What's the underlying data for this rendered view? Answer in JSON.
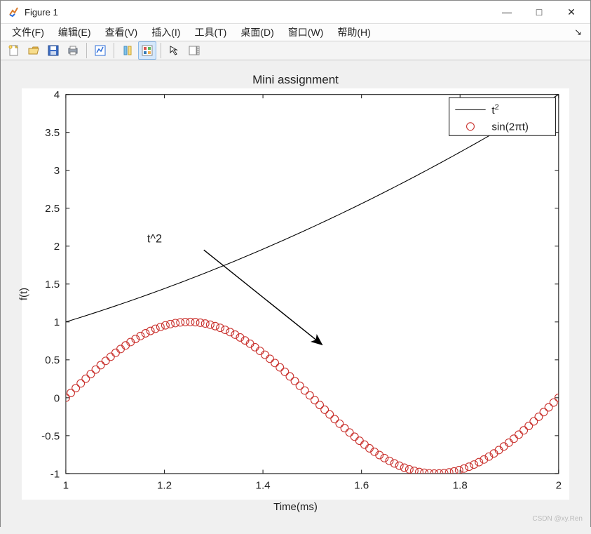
{
  "window": {
    "title": "Figure 1",
    "app_icon_color_top": "#d97a2b",
    "app_icon_color_bottom": "#2b6cd9"
  },
  "win_controls": {
    "min": "—",
    "max": "□",
    "close": "✕"
  },
  "menu": {
    "items": [
      "文件(F)",
      "编辑(E)",
      "查看(V)",
      "插入(I)",
      "工具(T)",
      "桌面(D)",
      "窗口(W)",
      "帮助(H)"
    ],
    "overflow": "↘"
  },
  "toolbar": {
    "icons": [
      {
        "name": "new-figure-icon"
      },
      {
        "name": "open-icon"
      },
      {
        "name": "save-icon"
      },
      {
        "name": "print-icon"
      },
      {
        "sep": true
      },
      {
        "name": "edit-plot-icon"
      },
      {
        "sep": true
      },
      {
        "name": "link-icon"
      },
      {
        "name": "insert-legend-icon",
        "pressed": true
      },
      {
        "sep": true
      },
      {
        "name": "arrow-icon"
      },
      {
        "name": "colorbar-icon"
      }
    ]
  },
  "chart": {
    "type": "line+scatter",
    "title": "Mini assignment",
    "xlabel": "Time(ms)",
    "ylabel": "f(t)",
    "xlim": [
      1,
      2
    ],
    "ylim": [
      -1,
      4
    ],
    "xtick_step": 0.2,
    "ytick_step": 0.5,
    "xticks": [
      1,
      1.2,
      1.4,
      1.6,
      1.8,
      2
    ],
    "yticks": [
      -1,
      -0.5,
      0,
      0.5,
      1,
      1.5,
      2,
      2.5,
      3,
      3.5,
      4
    ],
    "background_color": "#ffffff",
    "axis_color": "#222222",
    "tick_length": 5,
    "fontsize_ticks": 14,
    "fontsize_labels": 15,
    "fontsize_title": 17,
    "series": [
      {
        "name": "t_squared",
        "legend_label_html": "t²",
        "style": "line",
        "color": "#000000",
        "line_width": 1,
        "marker": "none",
        "t_start": 1,
        "t_end": 2,
        "n": 80,
        "fn": "t*t"
      },
      {
        "name": "sin_2pi_t",
        "legend_label_html": "sin(2πt)",
        "style": "marker",
        "color": "#c9302c",
        "marker": "o",
        "marker_size": 5,
        "line_width": 1,
        "fill": "none",
        "t_start": 1,
        "t_end": 2,
        "n": 100,
        "fn": "Math.sin(2*Math.PI*t)"
      }
    ],
    "annotation": {
      "text": "t^2",
      "text_pos_data": [
        1.18,
        2.05
      ],
      "arrow_from_data": [
        1.28,
        1.95
      ],
      "arrow_to_data": [
        1.52,
        0.7
      ],
      "arrow_color": "#000000",
      "arrow_width": 1.3
    },
    "legend": {
      "position": "northeast",
      "border_color": "#222222",
      "bg": "#ffffff",
      "entries": [
        {
          "swatch": "line",
          "color": "#000000",
          "label": "t²"
        },
        {
          "swatch": "marker-o",
          "color": "#c9302c",
          "label": "sin(2πt)"
        }
      ]
    }
  },
  "watermark": "CSDN @xy.Ren"
}
